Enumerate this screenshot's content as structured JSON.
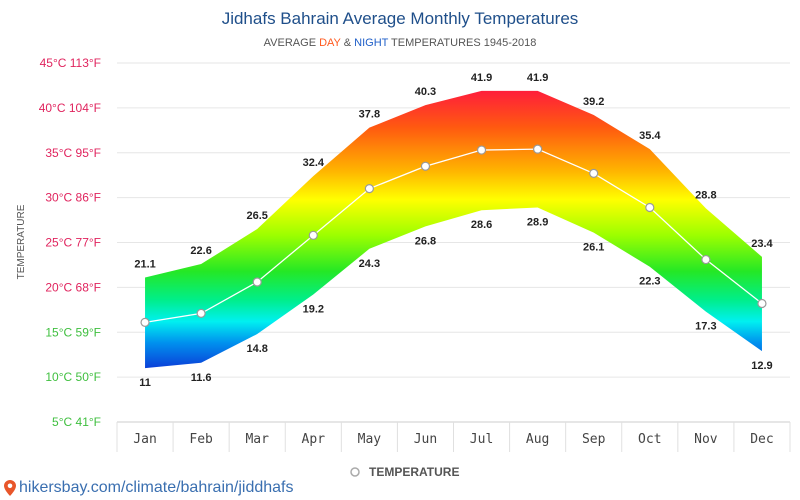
{
  "chart_data": {
    "type": "area",
    "title": "Jidhafs Bahrain Average Monthly Temperatures",
    "subtitle": {
      "prefix": "AVERAGE ",
      "day": "DAY",
      "mid": " & ",
      "night": "NIGHT",
      "suffix": " TEMPERATURES 1945-2018"
    },
    "ylabel": "TEMPERATURE",
    "y_ticks": [
      {
        "value": 45,
        "label": "45°C 113°F",
        "color": "#e0245e"
      },
      {
        "value": 40,
        "label": "40°C 104°F",
        "color": "#e0245e"
      },
      {
        "value": 35,
        "label": "35°C 95°F",
        "color": "#e0245e"
      },
      {
        "value": 30,
        "label": "30°C 86°F",
        "color": "#e0245e"
      },
      {
        "value": 25,
        "label": "25°C 77°F",
        "color": "#e0245e"
      },
      {
        "value": 20,
        "label": "20°C 68°F",
        "color": "#e0245e"
      },
      {
        "value": 15,
        "label": "15°C 59°F",
        "color": "#3fbf3f"
      },
      {
        "value": 10,
        "label": "10°C 50°F",
        "color": "#3fbf3f"
      },
      {
        "value": 5,
        "label": "5°C 41°F",
        "color": "#3fbf3f"
      }
    ],
    "ylim": [
      5,
      45
    ],
    "categories": [
      "Jan",
      "Feb",
      "Mar",
      "Apr",
      "May",
      "Jun",
      "Jul",
      "Aug",
      "Sep",
      "Oct",
      "Nov",
      "Dec"
    ],
    "series": [
      {
        "values": [
          21.1,
          22.6,
          26.5,
          32.4,
          37.8,
          40.3,
          41.9,
          41.9,
          39.2,
          35.4,
          28.8,
          23.4
        ]
      },
      {
        "values": [
          11,
          11.6,
          14.8,
          19.2,
          24.3,
          26.8,
          28.6,
          28.9,
          26.1,
          22.3,
          17.3,
          12.9
        ]
      },
      {
        "name": "TEMPERATURE",
        "values": [
          16.1,
          17.1,
          20.6,
          25.8,
          31.0,
          33.5,
          35.3,
          35.4,
          32.7,
          28.9,
          23.1,
          18.2
        ]
      }
    ],
    "legend": {
      "label": "TEMPERATURE",
      "position": "bottom"
    },
    "grid": true,
    "colors": {
      "title": "#1f4f8a",
      "day": "#ff5a1f",
      "night": "#1f5fc8",
      "axis": "#555555",
      "subtitle": "#555555"
    }
  },
  "footer": {
    "source_url": "hikersbay.com/climate/bahrain/jiddhafs"
  }
}
